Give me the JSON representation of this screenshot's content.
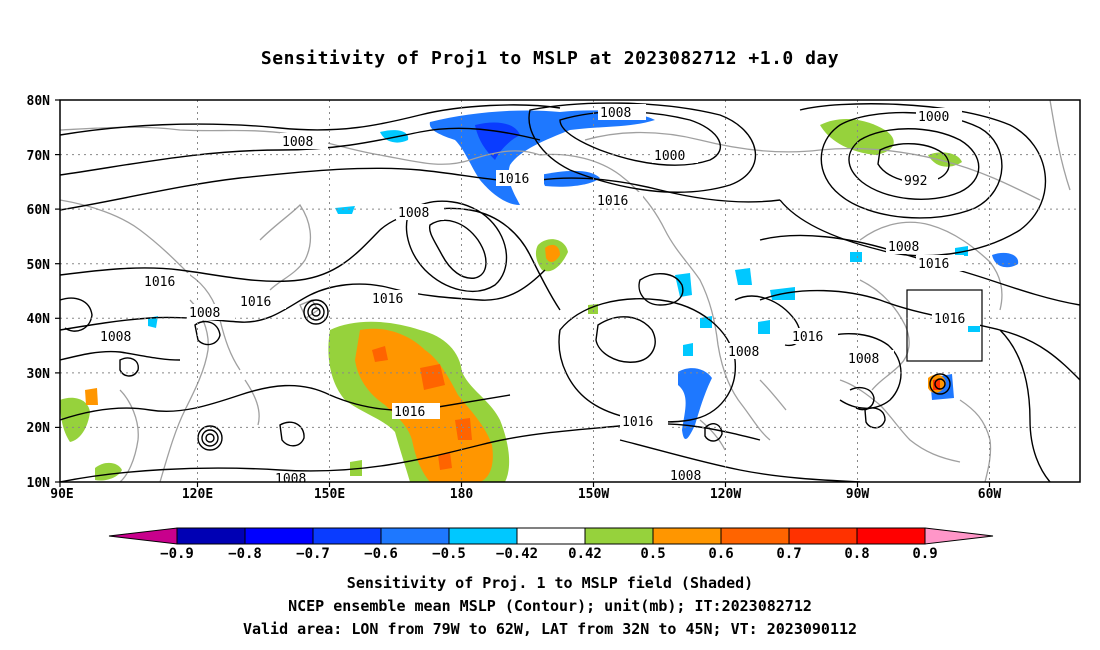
{
  "title": "Sensitivity of Proj1 to MSLP at 2023082712 +1.0 day",
  "captions": [
    "Sensitivity of Proj. 1 to MSLP field (Shaded)",
    "NCEP ensemble mean MSLP (Contour); unit(mb); IT:2023082712",
    "Valid area: LON from 79W to 62W, LAT from 32N to 45N; VT: 2023090112"
  ],
  "lat_labels": [
    "80N",
    "70N",
    "60N",
    "50N",
    "40N",
    "30N",
    "20N",
    "10N"
  ],
  "lon_labels": [
    "90E",
    "120E",
    "150E",
    "180",
    "150W",
    "120W",
    "90W",
    "60W"
  ],
  "contour_labels": [
    "1008",
    "1000",
    "1000",
    "992",
    "1008",
    "1016",
    "1008",
    "1016",
    "1016",
    "1008",
    "1016",
    "1008",
    "1016",
    "1008",
    "1016",
    "1016",
    "1016",
    "1008",
    "1008",
    "1008",
    "1016"
  ],
  "colorbar": {
    "labels": [
      "−0.9",
      "−0.8",
      "−0.7",
      "−0.6",
      "−0.5",
      "−0.42",
      "0.42",
      "0.5",
      "0.6",
      "0.7",
      "0.8",
      "0.9"
    ],
    "colors": [
      "#c8008c",
      "#0000b4",
      "#0000ff",
      "#0a3cff",
      "#1e78ff",
      "#00c8ff",
      "#ffffff",
      "#96d23c",
      "#ff9600",
      "#ff6400",
      "#ff3200",
      "#ff0000",
      "#ff96c8"
    ]
  },
  "colors": {
    "coast": "#a0a0a0",
    "contour": "#000000",
    "box": "#000000",
    "grid": "#888888"
  },
  "valid_area": {
    "lon_from": "79W",
    "lon_to": "62W",
    "lat_from": "32N",
    "lat_to": "45N"
  }
}
